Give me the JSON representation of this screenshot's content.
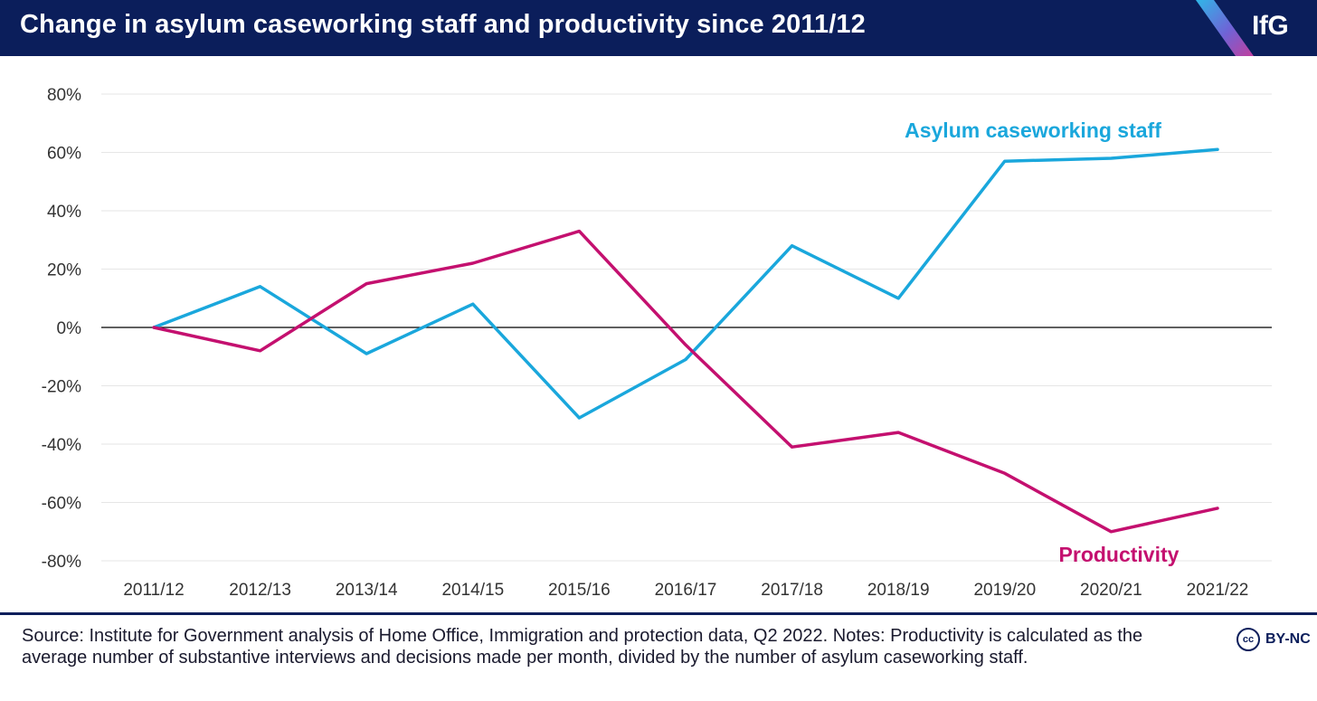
{
  "header": {
    "title": "Change in asylum caseworking staff and productivity since 2011/12",
    "logo": "IfG"
  },
  "footer": {
    "source": "Source: Institute for Government analysis of Home Office, Immigration and protection data, Q2 2022. Notes: Productivity is calculated as the average number of substantive interviews and decisions made per month, divided by the number of asylum caseworking staff.",
    "license_icon": "cc",
    "license_text": "BY-NC"
  },
  "colors": {
    "header_bg": "#0b1e5b",
    "staff": "#1aa7dc",
    "productivity": "#c4106f",
    "gridline": "#e6e6e6",
    "zero_line": "#000000"
  },
  "chart_data": {
    "type": "line",
    "categories": [
      "2011/12",
      "2012/13",
      "2013/14",
      "2014/15",
      "2015/16",
      "2016/17",
      "2017/18",
      "2018/19",
      "2019/20",
      "2020/21",
      "2021/22"
    ],
    "series": [
      {
        "name": "Asylum caseworking staff",
        "color": "#1aa7dc",
        "values": [
          0,
          14,
          -9,
          8,
          -31,
          -11,
          28,
          10,
          57,
          58,
          61
        ]
      },
      {
        "name": "Productivity",
        "color": "#c4106f",
        "values": [
          0,
          -8,
          15,
          22,
          33,
          -6,
          -41,
          -36,
          -50,
          -70,
          -62
        ]
      }
    ],
    "yticks": [
      "80%",
      "60%",
      "40%",
      "20%",
      "0%",
      "-20%",
      "-40%",
      "-60%",
      "-80%"
    ],
    "ylim": [
      -80,
      80
    ],
    "grid": true,
    "legend": "direct labels"
  }
}
